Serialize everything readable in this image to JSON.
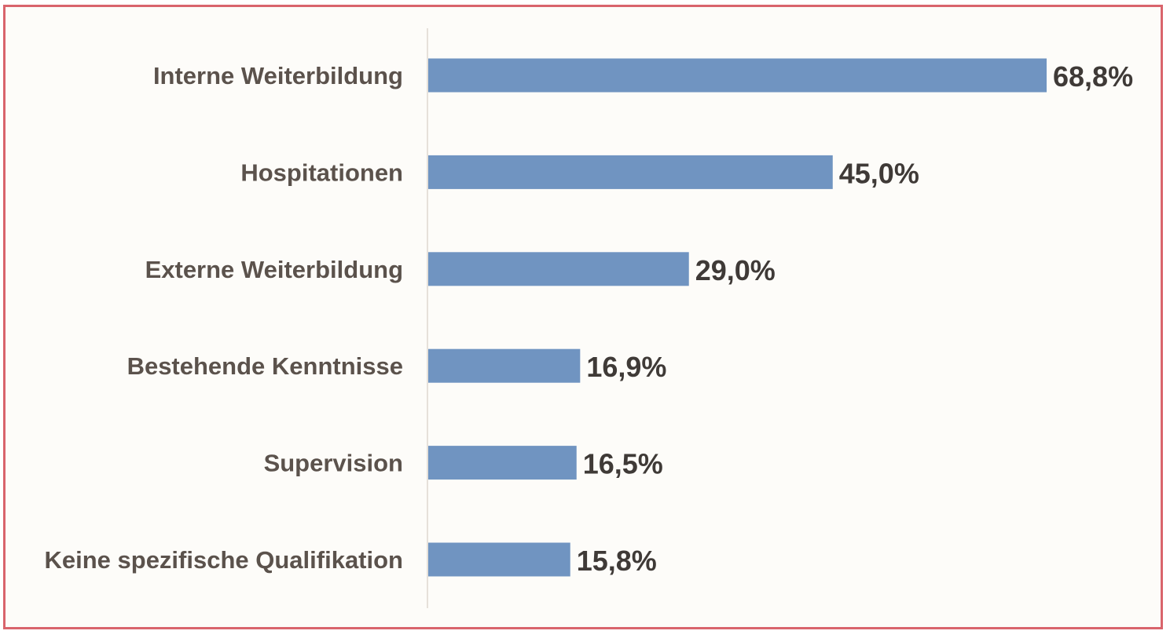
{
  "chart_data": {
    "type": "bar",
    "orientation": "horizontal",
    "categories": [
      "Interne Weiterbildung",
      "Hospitationen",
      "Externe Weiterbildung",
      "Bestehende Kenntnisse",
      "Supervision",
      "Keine spezifische Qualifikation"
    ],
    "values": [
      68.8,
      45.0,
      29.0,
      16.9,
      16.5,
      15.8
    ],
    "value_labels": [
      "68,8%",
      "45,0%",
      "29,0%",
      "16,9%",
      "16,5%",
      "15,8%"
    ],
    "title": "",
    "xlabel": "",
    "ylabel": "",
    "xlim": [
      0,
      68.8
    ],
    "grid": false,
    "legend": "none",
    "colors": {
      "bar": "#7094c1",
      "frame": "#d9646c",
      "axis": "#e6e1da",
      "category_text": "#5b524c",
      "value_text": "#3f3a37",
      "background": "#fdfcf9"
    }
  }
}
